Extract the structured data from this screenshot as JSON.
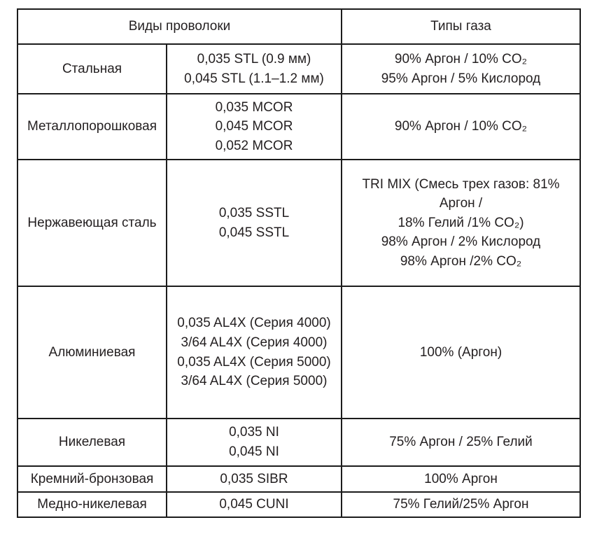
{
  "table": {
    "header": {
      "wire_types": "Виды проволоки",
      "gas_types": "Типы газа"
    },
    "rows": [
      {
        "material": "Стальная",
        "sizes": [
          "0,035 STL (0.9 мм)",
          "0,045 STL (1.1–1.2 мм)"
        ],
        "gases": [
          "90% Аргон / 10% CO₂",
          "95% Аргон / 5% Кислород"
        ]
      },
      {
        "material": "Металлопорошковая",
        "sizes": [
          "0,035 MCOR",
          "0,045 MCOR",
          "0,052 MCOR"
        ],
        "gases": [
          "90% Аргон / 10% CO₂"
        ]
      },
      {
        "material": "Нержавеющая сталь",
        "sizes": [
          "0,035 SSTL",
          "0,045 SSTL"
        ],
        "gases": [
          "TRI MIX (Смесь трех газов: 81%",
          "Аргон /",
          "18% Гелий /1% CO₂)",
          "98% Аргон / 2% Кислород",
          "98% Аргон /2% CO₂"
        ]
      },
      {
        "material": "Алюминиевая",
        "sizes": [
          "0,035 AL4X (Серия 4000)",
          "3/64 AL4X (Серия 4000)",
          "0,035 AL4X (Серия 5000)",
          "3/64 AL4X (Серия 5000)"
        ],
        "gases": [
          "100% (Аргон)"
        ]
      },
      {
        "material": "Никелевая",
        "sizes": [
          "0,035 NI",
          "0,045 NI"
        ],
        "gases": [
          "75% Аргон / 25% Гелий"
        ]
      },
      {
        "material": "Кремний-бронзовая",
        "sizes": [
          "0,035 SIBR"
        ],
        "gases": [
          "100% Аргон"
        ]
      },
      {
        "material": "Медно-никелевая",
        "sizes": [
          "0,045 CUNI"
        ],
        "gases": [
          "75% Гелий/25% Аргон"
        ]
      }
    ]
  },
  "colors": {
    "border": "#1c1c1c",
    "text": "#231f20",
    "background": "#ffffff"
  }
}
